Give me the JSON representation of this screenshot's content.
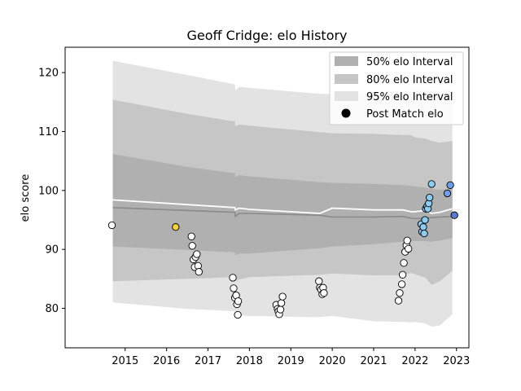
{
  "chart_data": {
    "type": "scatter",
    "title": "Geoff Cridge: elo History",
    "xlabel": "",
    "ylabel": "elo score",
    "xlim": [
      2013.55,
      2023.3
    ],
    "ylim": [
      73.3,
      124.3
    ],
    "x_ticks": [
      2015,
      2016,
      2017,
      2018,
      2019,
      2020,
      2021,
      2022,
      2023
    ],
    "y_ticks": [
      80,
      90,
      100,
      110,
      120
    ],
    "legend": {
      "position": "top-right",
      "entries": [
        "50% elo Interval",
        "80% elo Interval",
        "95% elo Interval",
        "Post Match elo"
      ]
    },
    "colors": {
      "band50": "#b0b0b0",
      "band80": "#c6c6c6",
      "band95": "#e3e3e3",
      "mean_line": "#ffffff",
      "median_line": "#8a8a8a",
      "point_default": "#ffffff",
      "point_highlight": "#f2d33a",
      "point_light_blue": "#8ecbf0",
      "point_mid_blue": "#6d9ee6",
      "point_dark_blue": "#5b79cf"
    },
    "bands": {
      "x": [
        2014.7,
        2016.5,
        2017.65,
        2017.66,
        2017.75,
        2018.0,
        2019.7,
        2020.0,
        2021.0,
        2021.7,
        2021.9,
        2022.0,
        2022.25,
        2022.4,
        2022.6,
        2022.9
      ],
      "p95_hi": [
        122.0,
        119.6,
        118.0,
        117.0,
        117.6,
        117.4,
        116.4,
        116.4,
        116.6,
        116.9,
        116.9,
        117.1,
        117.3,
        117.0,
        116.9,
        117.2
      ],
      "p80_hi": [
        115.4,
        113.0,
        111.7,
        110.9,
        111.2,
        111.0,
        109.9,
        109.7,
        109.6,
        109.4,
        109.4,
        109.0,
        108.8,
        108.4,
        108.1,
        108.4
      ],
      "p50_hi": [
        106.2,
        104.0,
        102.9,
        102.3,
        102.6,
        102.4,
        101.4,
        101.3,
        101.1,
        100.9,
        100.8,
        100.7,
        100.5,
        100.3,
        100.1,
        100.4
      ],
      "p50_lo": [
        90.5,
        89.9,
        89.5,
        89.0,
        89.3,
        89.3,
        90.2,
        90.5,
        90.9,
        91.3,
        91.4,
        91.4,
        91.4,
        91.3,
        91.5,
        91.9
      ],
      "p80_lo": [
        84.6,
        85.0,
        85.3,
        84.6,
        84.9,
        85.3,
        85.7,
        85.9,
        85.6,
        85.6,
        86.0,
        85.8,
        85.2,
        84.0,
        84.6,
        86.4
      ],
      "p95_lo": [
        81.0,
        79.9,
        79.5,
        78.5,
        78.8,
        78.7,
        78.5,
        78.7,
        77.8,
        77.7,
        77.6,
        77.7,
        77.4,
        76.9,
        77.1,
        79.0
      ],
      "mean": [
        98.4,
        97.6,
        97.1,
        96.7,
        97.0,
        96.8,
        96.1,
        97.0,
        96.7,
        96.7,
        96.4,
        96.4,
        96.6,
        96.1,
        96.3,
        96.9
      ],
      "median": [
        97.1,
        96.6,
        96.3,
        95.6,
        96.1,
        96.1,
        95.8,
        95.5,
        95.5,
        95.6,
        95.3,
        95.2,
        95.3,
        95.4,
        95.5,
        95.6
      ]
    },
    "points": [
      {
        "x": 2014.68,
        "y": 94.1,
        "color": "white"
      },
      {
        "x": 2016.22,
        "y": 93.8,
        "color": "highlight"
      },
      {
        "x": 2016.6,
        "y": 92.2,
        "color": "white"
      },
      {
        "x": 2016.62,
        "y": 90.6,
        "color": "white"
      },
      {
        "x": 2016.65,
        "y": 88.3,
        "color": "white"
      },
      {
        "x": 2016.68,
        "y": 87.0,
        "color": "white"
      },
      {
        "x": 2016.7,
        "y": 88.7,
        "color": "white"
      },
      {
        "x": 2016.73,
        "y": 89.2,
        "color": "white"
      },
      {
        "x": 2016.76,
        "y": 87.2,
        "color": "white"
      },
      {
        "x": 2016.78,
        "y": 86.2,
        "color": "white"
      },
      {
        "x": 2017.6,
        "y": 85.2,
        "color": "white"
      },
      {
        "x": 2017.62,
        "y": 83.4,
        "color": "white"
      },
      {
        "x": 2017.65,
        "y": 81.8,
        "color": "white"
      },
      {
        "x": 2017.68,
        "y": 82.2,
        "color": "white"
      },
      {
        "x": 2017.7,
        "y": 80.7,
        "color": "white"
      },
      {
        "x": 2017.73,
        "y": 81.2,
        "color": "white"
      },
      {
        "x": 2017.72,
        "y": 78.9,
        "color": "white"
      },
      {
        "x": 2018.65,
        "y": 80.6,
        "color": "white"
      },
      {
        "x": 2018.68,
        "y": 79.9,
        "color": "white"
      },
      {
        "x": 2018.7,
        "y": 79.5,
        "color": "white"
      },
      {
        "x": 2018.72,
        "y": 79.0,
        "color": "white"
      },
      {
        "x": 2018.75,
        "y": 79.8,
        "color": "white"
      },
      {
        "x": 2018.77,
        "y": 80.9,
        "color": "white"
      },
      {
        "x": 2018.8,
        "y": 82.0,
        "color": "white"
      },
      {
        "x": 2019.68,
        "y": 84.6,
        "color": "white"
      },
      {
        "x": 2019.7,
        "y": 83.5,
        "color": "white"
      },
      {
        "x": 2019.73,
        "y": 83.2,
        "color": "white"
      },
      {
        "x": 2019.76,
        "y": 82.4,
        "color": "white"
      },
      {
        "x": 2019.78,
        "y": 83.5,
        "color": "white"
      },
      {
        "x": 2019.8,
        "y": 82.6,
        "color": "white"
      },
      {
        "x": 2021.6,
        "y": 81.3,
        "color": "white"
      },
      {
        "x": 2021.63,
        "y": 82.6,
        "color": "white"
      },
      {
        "x": 2021.68,
        "y": 84.1,
        "color": "white"
      },
      {
        "x": 2021.7,
        "y": 85.7,
        "color": "white"
      },
      {
        "x": 2021.73,
        "y": 87.7,
        "color": "white"
      },
      {
        "x": 2021.76,
        "y": 89.6,
        "color": "white"
      },
      {
        "x": 2021.79,
        "y": 90.7,
        "color": "white"
      },
      {
        "x": 2021.81,
        "y": 91.5,
        "color": "white"
      },
      {
        "x": 2021.84,
        "y": 90.1,
        "color": "white"
      },
      {
        "x": 2022.15,
        "y": 94.3,
        "color": "light_blue"
      },
      {
        "x": 2022.17,
        "y": 93.0,
        "color": "light_blue"
      },
      {
        "x": 2022.2,
        "y": 93.8,
        "color": "light_blue"
      },
      {
        "x": 2022.22,
        "y": 92.7,
        "color": "light_blue"
      },
      {
        "x": 2022.24,
        "y": 95.0,
        "color": "light_blue"
      },
      {
        "x": 2022.26,
        "y": 96.9,
        "color": "light_blue"
      },
      {
        "x": 2022.29,
        "y": 97.3,
        "color": "light_blue"
      },
      {
        "x": 2022.31,
        "y": 96.9,
        "color": "light_blue"
      },
      {
        "x": 2022.33,
        "y": 97.8,
        "color": "light_blue"
      },
      {
        "x": 2022.35,
        "y": 98.8,
        "color": "light_blue"
      },
      {
        "x": 2022.4,
        "y": 101.1,
        "color": "light_blue"
      },
      {
        "x": 2022.78,
        "y": 99.5,
        "color": "mid_blue"
      },
      {
        "x": 2022.85,
        "y": 100.9,
        "color": "mid_blue"
      },
      {
        "x": 2022.95,
        "y": 95.8,
        "color": "dark_blue"
      }
    ]
  }
}
